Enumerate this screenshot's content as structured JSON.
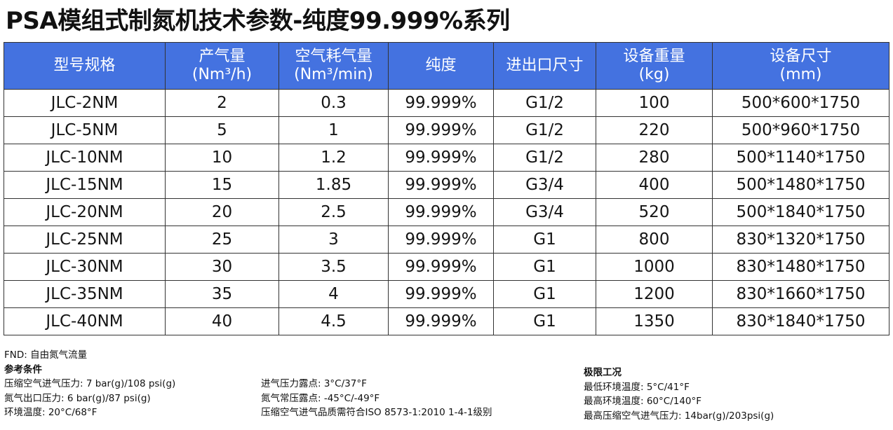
{
  "title": "PSA模组式制氮机技术参数-纯度99.999%系列",
  "table": {
    "headers": [
      {
        "line1": "型号规格",
        "line2": ""
      },
      {
        "line1": "产气量",
        "line2": "(Nm³/h)"
      },
      {
        "line1": "空气耗气量",
        "line2": "(Nm³/min)"
      },
      {
        "line1": "纯度",
        "line2": ""
      },
      {
        "line1": "进出口尺寸",
        "line2": ""
      },
      {
        "line1": "设备重量",
        "line2": "(kg)"
      },
      {
        "line1": "设备尺寸",
        "line2": "(mm)"
      }
    ],
    "rows": [
      [
        "JLC-2NM",
        "2",
        "0.3",
        "99.999%",
        "G1/2",
        "100",
        "500*600*1750"
      ],
      [
        "JLC-5NM",
        "5",
        "1",
        "99.999%",
        "G1/2",
        "220",
        "500*960*1750"
      ],
      [
        "JLC-10NM",
        "10",
        "1.2",
        "99.999%",
        "G1/2",
        "280",
        "500*1140*1750"
      ],
      [
        "JLC-15NM",
        "15",
        "1.85",
        "99.999%",
        "G3/4",
        "400",
        "500*1480*1750"
      ],
      [
        "JLC-20NM",
        "20",
        "2.5",
        "99.999%",
        "G3/4",
        "520",
        "500*1840*1750"
      ],
      [
        "JLC-25NM",
        "25",
        "3",
        "99.999%",
        "G1",
        "800",
        "830*1320*1750"
      ],
      [
        "JLC-30NM",
        "30",
        "3.5",
        "99.999%",
        "G1",
        "1000",
        "830*1480*1750"
      ],
      [
        "JLC-35NM",
        "35",
        "4",
        "99.999%",
        "G1",
        "1200",
        "830*1660*1750"
      ],
      [
        "JLC-40NM",
        "40",
        "4.5",
        "99.999%",
        "G1",
        "1350",
        "830*1840*1750"
      ]
    ]
  },
  "notes": {
    "fnd": "FND: 自由氮气流量",
    "reference_heading": "参考条件",
    "reference_col1": [
      "压缩空气进气压力: 7 bar(g)/108 psi(g)",
      "氮气出口压力: 6 bar(g)/87 psi(g)",
      "环境温度: 20°C/68°F"
    ],
    "reference_col2": [
      "进气压力露点: 3°C/37°F",
      "氮气常压露点: -45°C/-49°F",
      "压缩空气进气品质需符合ISO 8573-1:2010 1-4-1级别"
    ],
    "limits_heading": "极限工况",
    "limits": [
      "最低环境温度: 5°C/41°F",
      "最高环境温度: 60°C/140°F",
      "最高压缩空气进气压力: 14bar(g)/203psi(g)"
    ]
  },
  "colors": {
    "header_bg": "#4472e0",
    "header_text": "#ffffff",
    "border": "#333333"
  }
}
